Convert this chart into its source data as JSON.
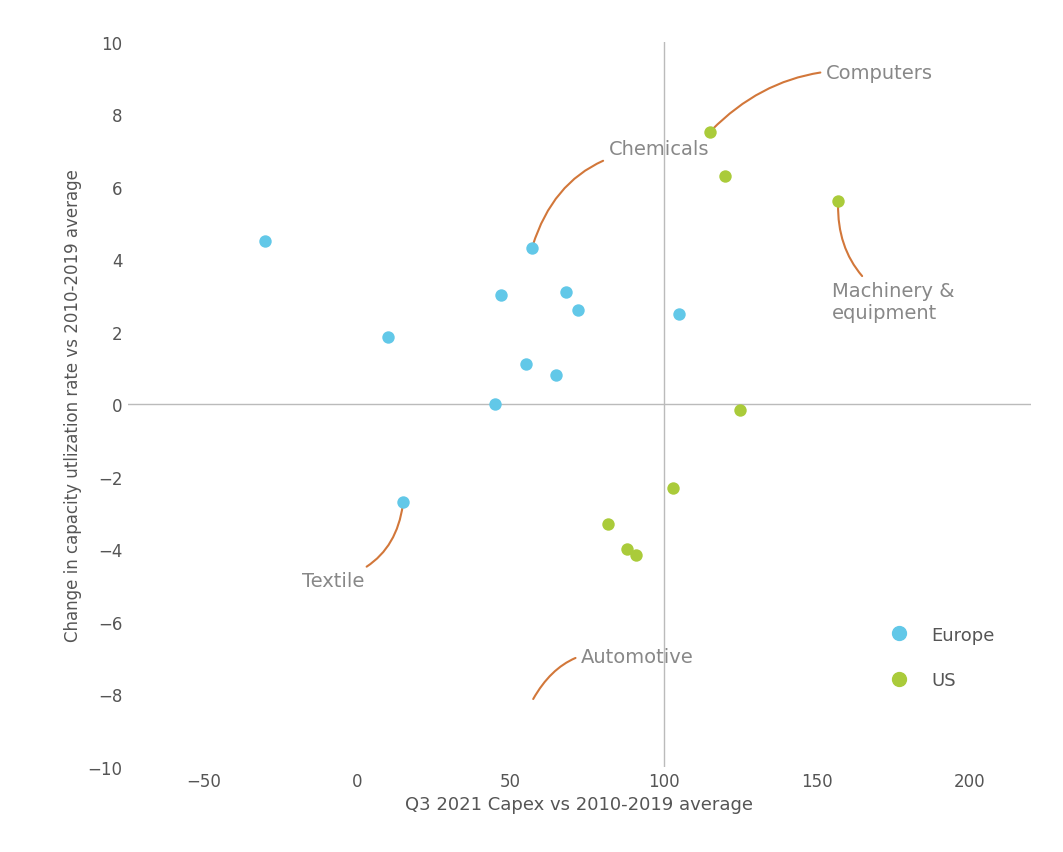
{
  "europe_points": [
    [
      -30,
      4.5
    ],
    [
      10,
      1.85
    ],
    [
      45,
      0.0
    ],
    [
      47,
      3.0
    ],
    [
      55,
      1.1
    ],
    [
      57,
      4.3
    ],
    [
      65,
      0.8
    ],
    [
      68,
      3.1
    ],
    [
      72,
      2.6
    ],
    [
      105,
      2.5
    ],
    [
      15,
      -2.7
    ]
  ],
  "us_points": [
    [
      115,
      7.5
    ],
    [
      120,
      6.3
    ],
    [
      157,
      5.6
    ],
    [
      125,
      -0.15
    ],
    [
      103,
      -2.3
    ],
    [
      82,
      -3.3
    ],
    [
      88,
      -4.0
    ],
    [
      91,
      -4.15
    ]
  ],
  "europe_color": "#62C8E8",
  "us_color": "#AACB3A",
  "annotation_color": "#D2773A",
  "annotation_text_color": "#888888",
  "xlim": [
    -75,
    220
  ],
  "ylim": [
    -10,
    10
  ],
  "xticks": [
    -50,
    0,
    50,
    100,
    150,
    200
  ],
  "yticks": [
    -10,
    -8,
    -6,
    -4,
    -2,
    0,
    2,
    4,
    6,
    8,
    10
  ],
  "xlabel": "Q3 2021 Capex vs 2010-2019 average",
  "ylabel": "Change in capacity utlization rate vs 2010-2019 average",
  "vline_x": 100,
  "hline_y": 0,
  "marker_size": 80,
  "background_color": "#ffffff",
  "refline_color": "#bbbbbb",
  "tick_color": "#555555",
  "label_fontsize": 13,
  "tick_fontsize": 12,
  "ann_fontsize": 14
}
